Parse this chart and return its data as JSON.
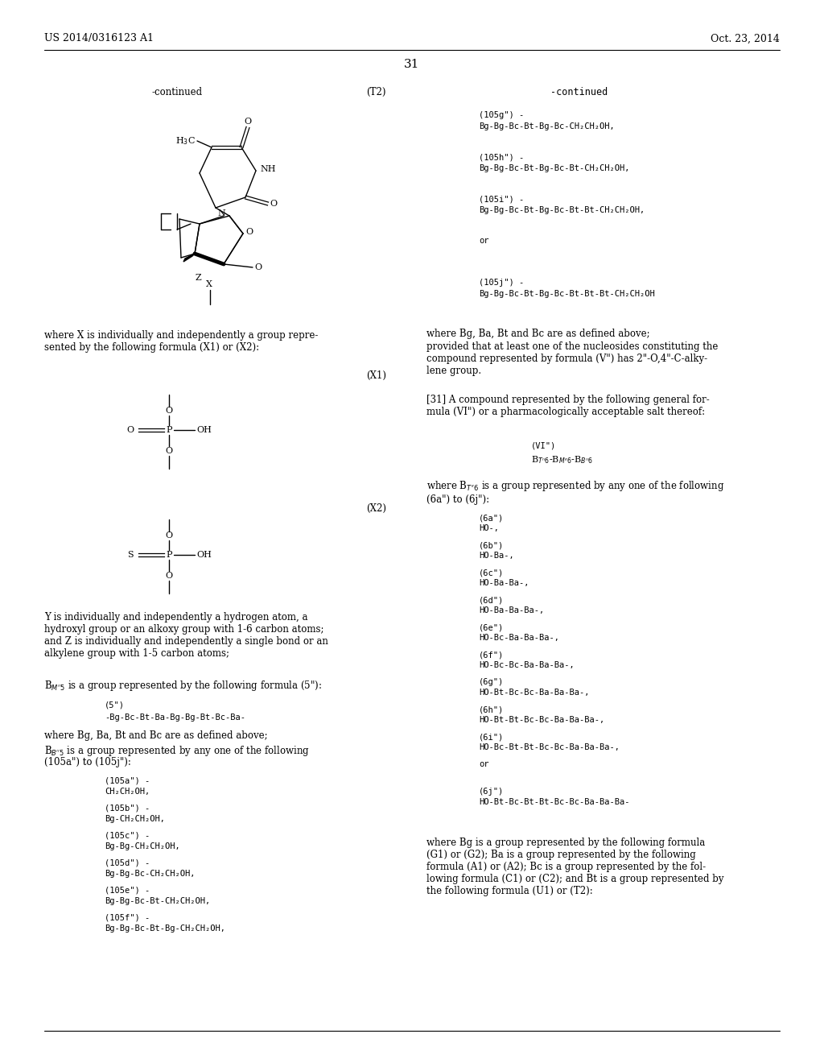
{
  "bg": "#ffffff",
  "header_left": "US 2014/0316123 A1",
  "header_right": "Oct. 23, 2014",
  "page_num": "31",
  "cont_left": "-continued",
  "cont_right": "-continued",
  "T2_label": "(T2)",
  "X1_label": "(X1)",
  "X2_label": "(X2)",
  "where_X": "where X is individually and independently a group repre-\nsented by the following formula (X1) or (X2):",
  "where_Y": "Y is individually and independently a hydrogen atom, a\nhydroxyl group or an alkoxy group with 1-6 carbon atoms;\nand Z is individually and independently a single bond or an\nalkylene group with 1-5 carbon atoms;",
  "BM5_line": "is a group represented by the following formula (5\"):",
  "formula5_label": "(5\")",
  "formula5": "-Bg-Bc-Bt-Ba-Bg-Bg-Bt-Bc-Ba-",
  "where_Bg1": "where Bg, Ba, Bt and Bc are as defined above;",
  "BB5_line1": "is a group represented by any one of the following",
  "BB5_line2": "(105a\") to (105j\"):",
  "formulas_left_labels": [
    "(105a\") -",
    "(105b\") -",
    "(105c\") -",
    "(105d\") -",
    "(105e\") -",
    "(105f\") -"
  ],
  "formulas_left_vals": [
    "CH₂CH₂OH,",
    "Bg-CH₂CH₂OH,",
    "Bg-Bg-CH₂CH₂OH,",
    "Bg-Bg-Bc-CH₂CH₂OH,",
    "Bg-Bg-Bc-Bt-CH₂CH₂OH,",
    "Bg-Bg-Bc-Bt-Bg-CH₂CH₂OH,"
  ],
  "formulas_right_labels": [
    "(105g\") -",
    "(105h\") -",
    "(105i\") -",
    "",
    "(105j\") -"
  ],
  "formulas_right_vals": [
    "Bg-Bg-Bc-Bt-Bg-Bc-CH₂CH₂OH,",
    "Bg-Bg-Bc-Bt-Bg-Bc-Bt-CH₂CH₂OH,",
    "Bg-Bg-Bc-Bt-Bg-Bc-Bt-Bt-CH₂CH₂OH,",
    "or",
    "Bg-Bg-Bc-Bt-Bg-Bc-Bt-Bt-Bt-CH₂CH₂OH"
  ],
  "where_Bg2": "where Bg, Ba, Bt and Bc are as defined above;",
  "provided": "provided that at least one of the nucleosides constituting the\ncompound represented by formula (V\") has 2\"-O,4\"-C-alky-\nlene group.",
  "claim31": "[31] A compound represented by the following general for-\nmula (VI\") or a pharmacologically acceptable salt thereof:",
  "VI_label": "(VI\")",
  "VI_formula": "B_{T−6}-B_{M−6}-B_{B−6}",
  "where_BT": "where B",
  "where_BT2": " is a group represented by any one of the following\n(6a\") to (6j\"):",
  "formulas6_labels": [
    "(6a\")",
    "(6b\")",
    "(6c\")",
    "(6d\")",
    "(6e\")",
    "(6f\")",
    "(6g\")",
    "(6h\")",
    "(6i\")",
    "",
    "(6j\")"
  ],
  "formulas6_vals": [
    "HO-,",
    "HO-Ba-,",
    "HO-Ba-Ba-,",
    "HO-Ba-Ba-Ba-,",
    "HO-Bc-Ba-Ba-Ba-,",
    "HO-Bc-Bc-Ba-Ba-Ba-,",
    "HO-Bt-Bc-Bc-Ba-Ba-Ba-,",
    "HO-Bt-Bt-Bc-Bc-Ba-Ba-Ba-,",
    "HO-Bc-Bt-Bt-Bc-Bc-Ba-Ba-Ba-,",
    "or",
    "HO-Bt-Bc-Bt-Bt-Bc-Bc-Ba-Ba-Ba-"
  ],
  "bottom_right": "where Bg is a group represented by the following formula\n(G1) or (G2); Ba is a group represented by the following\nformula (A1) or (A2); Bc is a group represented by the fol-\nlowing formula (C1) or (C2); and Bt is a group represented by\nthe following formula (U1) or (T2):"
}
